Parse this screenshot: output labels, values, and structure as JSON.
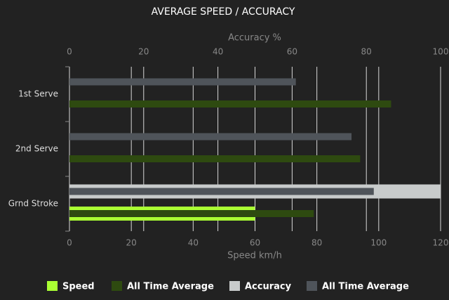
{
  "chart_data": {
    "type": "bar",
    "orientation": "horizontal",
    "title": "AVERAGE SPEED / ACCURACY",
    "categories": [
      "1st Serve",
      "2nd Serve",
      "Grnd Stroke"
    ],
    "xlabel": "Speed km/h",
    "xlim": [
      0,
      120
    ],
    "xticks": [
      0,
      20,
      40,
      60,
      80,
      100,
      120
    ],
    "x2label": "Accuracy %",
    "x2lim": [
      0,
      100
    ],
    "x2ticks": [
      0,
      20,
      40,
      60,
      80,
      100
    ],
    "grid": true,
    "series": [
      {
        "name": "Speed",
        "color": "#aaff33",
        "axis": "x",
        "values": [
          null,
          null,
          60
        ]
      },
      {
        "name": "All Time Average",
        "color": "#2e4a10",
        "axis": "x",
        "values": [
          104,
          94,
          79
        ]
      },
      {
        "name": "Accuracy",
        "color": "#c8cbcb",
        "axis": "x2",
        "values": [
          null,
          null,
          100
        ]
      },
      {
        "name": "All Time Average",
        "color": "#4f545a",
        "axis": "x2",
        "values": [
          61,
          76,
          82
        ]
      }
    ]
  }
}
